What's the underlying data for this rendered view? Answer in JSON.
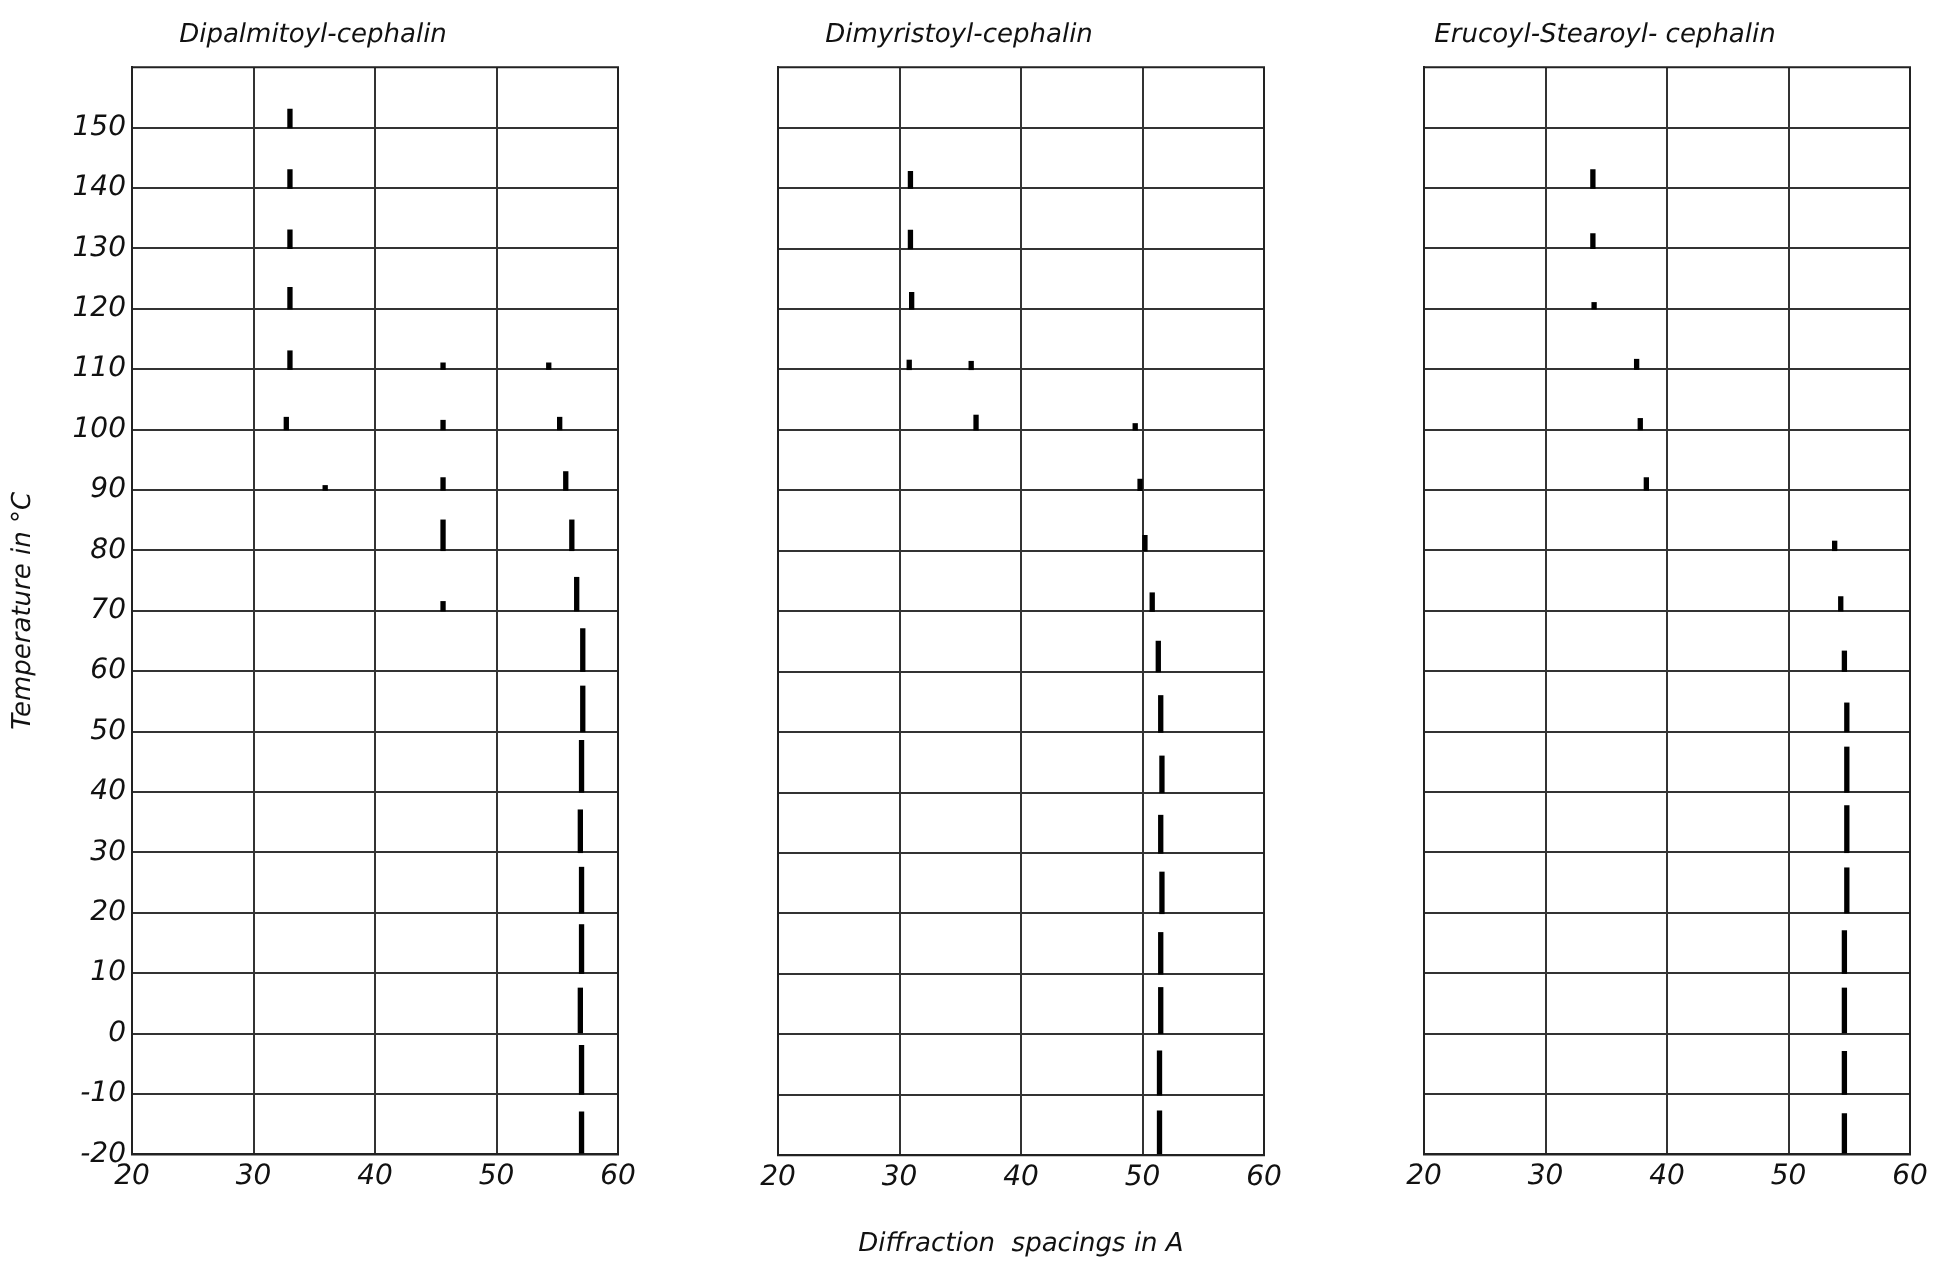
{
  "chart_data": [
    {
      "type": "bar",
      "title": "Dipalmitoyl-cephalin",
      "ylabel": "Temperature in °C",
      "xlim": [
        20,
        60
      ],
      "xticks": [
        20,
        30,
        40,
        50,
        60
      ],
      "ylim": [
        -20,
        160
      ],
      "yticks": [
        -20,
        -10,
        0,
        10,
        20,
        30,
        40,
        50,
        60,
        70,
        80,
        90,
        100,
        110,
        120,
        130,
        140,
        150
      ],
      "grid": true,
      "series": [
        {
          "color": "#000000",
          "x": [
            32.7
          ],
          "base": [
            100
          ],
          "values": [
            2
          ]
        },
        {
          "color": "#000000",
          "x": [
            33
          ],
          "base": [
            150
          ],
          "values": [
            3
          ]
        },
        {
          "color": "#000000",
          "x": [
            33
          ],
          "base": [
            140
          ],
          "values": [
            3
          ]
        },
        {
          "color": "#000000",
          "x": [
            33
          ],
          "base": [
            130
          ],
          "values": [
            3
          ]
        },
        {
          "color": "#000000",
          "x": [
            33
          ],
          "base": [
            120
          ],
          "values": [
            3.5
          ]
        },
        {
          "color": "#000000",
          "x": [
            33
          ],
          "base": [
            110
          ],
          "values": [
            3
          ]
        },
        {
          "color": "#000000",
          "x": [
            35.9
          ],
          "base": [
            90
          ],
          "values": [
            0.7
          ]
        },
        {
          "color": "#000000",
          "x": [
            45.6
          ],
          "base": [
            110
          ],
          "values": [
            1
          ]
        },
        {
          "color": "#000000",
          "x": [
            45.6
          ],
          "base": [
            100
          ],
          "values": [
            1.5
          ]
        },
        {
          "color": "#000000",
          "x": [
            45.6
          ],
          "base": [
            90
          ],
          "values": [
            2
          ]
        },
        {
          "color": "#000000",
          "x": [
            45.6
          ],
          "base": [
            80
          ],
          "values": [
            5
          ]
        },
        {
          "color": "#000000",
          "x": [
            45.6
          ],
          "base": [
            70
          ],
          "values": [
            1.5
          ]
        },
        {
          "color": "#000000",
          "x": [
            54.3
          ],
          "base": [
            110
          ],
          "values": [
            1
          ]
        },
        {
          "color": "#000000",
          "x": [
            55.2
          ],
          "base": [
            100
          ],
          "values": [
            2
          ]
        },
        {
          "color": "#000000",
          "x": [
            55.7
          ],
          "base": [
            90
          ],
          "values": [
            3
          ]
        },
        {
          "color": "#000000",
          "x": [
            56.2
          ],
          "base": [
            80
          ],
          "values": [
            5
          ]
        },
        {
          "color": "#000000",
          "x": [
            56.6
          ],
          "base": [
            70
          ],
          "values": [
            5.5
          ]
        },
        {
          "color": "#000000",
          "x": [
            56.9
          ],
          "base": [
            30
          ],
          "values": [
            7
          ]
        },
        {
          "color": "#000000",
          "x": [
            56.9
          ],
          "base": [
            0
          ],
          "values": [
            7.5
          ]
        },
        {
          "color": "#000000",
          "x": [
            57
          ],
          "base": [
            40
          ],
          "values": [
            8.5
          ]
        },
        {
          "color": "#000000",
          "x": [
            57
          ],
          "base": [
            20
          ],
          "values": [
            7.5
          ]
        },
        {
          "color": "#000000",
          "x": [
            57
          ],
          "base": [
            10
          ],
          "values": [
            8
          ]
        },
        {
          "color": "#000000",
          "x": [
            57
          ],
          "base": [
            -10
          ],
          "values": [
            8
          ]
        },
        {
          "color": "#000000",
          "x": [
            57
          ],
          "base": [
            -20
          ],
          "values": [
            7
          ]
        },
        {
          "color": "#000000",
          "x": [
            57.1
          ],
          "base": [
            60
          ],
          "values": [
            7
          ]
        },
        {
          "color": "#000000",
          "x": [
            57.1
          ],
          "base": [
            50
          ],
          "values": [
            7.5
          ]
        }
      ]
    },
    {
      "type": "bar",
      "title": "Dimyristoyl-cephalin",
      "xlabel": "Diffraction  spacings in A",
      "xlim": [
        20,
        60
      ],
      "xticks": [
        20,
        30,
        40,
        50,
        60
      ],
      "ylim": [
        -20,
        160
      ],
      "yticks": [
        -20,
        -10,
        0,
        10,
        20,
        30,
        40,
        50,
        60,
        70,
        80,
        90,
        100,
        110,
        120,
        130,
        140,
        150
      ],
      "grid": true,
      "tick_labels": "x",
      "series": [
        {
          "color": "#000000",
          "x": [
            30.8,
            35.9
          ],
          "base": [
            110,
            110
          ],
          "values": [
            1.5,
            1.3
          ]
        },
        {
          "color": "#000000",
          "x": [
            30.9
          ],
          "base": [
            140
          ],
          "values": [
            2.7
          ]
        },
        {
          "color": "#000000",
          "x": [
            30.9
          ],
          "base": [
            130
          ],
          "values": [
            3
          ]
        },
        {
          "color": "#000000",
          "x": [
            31
          ],
          "base": [
            120
          ],
          "values": [
            2.7
          ]
        },
        {
          "color": "#000000",
          "x": [
            36.3,
            49.4
          ],
          "base": [
            100,
            100
          ],
          "values": [
            2.4,
            1
          ]
        },
        {
          "color": "#000000",
          "x": [
            49.8
          ],
          "base": [
            90
          ],
          "values": [
            1.8
          ]
        },
        {
          "color": "#000000",
          "x": [
            50.2
          ],
          "base": [
            80
          ],
          "values": [
            2.5
          ]
        },
        {
          "color": "#000000",
          "x": [
            50.8
          ],
          "base": [
            70
          ],
          "values": [
            3
          ]
        },
        {
          "color": "#000000",
          "x": [
            51.3
          ],
          "base": [
            60
          ],
          "values": [
            5
          ]
        },
        {
          "color": "#000000",
          "x": [
            51.4
          ],
          "base": [
            -10
          ],
          "values": [
            7.2
          ]
        },
        {
          "color": "#000000",
          "x": [
            51.4
          ],
          "base": [
            -20
          ],
          "values": [
            7.3
          ]
        },
        {
          "color": "#000000",
          "x": [
            51.5
          ],
          "base": [
            50
          ],
          "values": [
            6
          ]
        },
        {
          "color": "#000000",
          "x": [
            51.5
          ],
          "base": [
            30
          ],
          "values": [
            6.2
          ]
        },
        {
          "color": "#000000",
          "x": [
            51.5
          ],
          "base": [
            10
          ],
          "values": [
            6.8
          ]
        },
        {
          "color": "#000000",
          "x": [
            51.5
          ],
          "base": [
            0
          ],
          "values": [
            7.7
          ]
        },
        {
          "color": "#000000",
          "x": [
            51.6
          ],
          "base": [
            40
          ],
          "values": [
            6
          ]
        },
        {
          "color": "#000000",
          "x": [
            51.6
          ],
          "base": [
            20
          ],
          "values": [
            6.8
          ]
        }
      ]
    },
    {
      "type": "bar",
      "title": "Erucoyl-Stearoyl- cephalin",
      "xlim": [
        20,
        60
      ],
      "xticks": [
        20,
        30,
        40,
        50,
        60
      ],
      "ylim": [
        -20,
        160
      ],
      "yticks": [
        -20,
        -10,
        0,
        10,
        20,
        30,
        40,
        50,
        60,
        70,
        80,
        90,
        100,
        110,
        120,
        130,
        140,
        150
      ],
      "grid": true,
      "tick_labels": "x",
      "series": [
        {
          "color": "#000000",
          "x": [
            33.9
          ],
          "base": [
            140
          ],
          "values": [
            3
          ]
        },
        {
          "color": "#000000",
          "x": [
            33.9
          ],
          "base": [
            130
          ],
          "values": [
            2.4
          ]
        },
        {
          "color": "#000000",
          "x": [
            34
          ],
          "base": [
            120
          ],
          "values": [
            1
          ]
        },
        {
          "color": "#000000",
          "x": [
            37.5
          ],
          "base": [
            110
          ],
          "values": [
            1.6
          ]
        },
        {
          "color": "#000000",
          "x": [
            37.8
          ],
          "base": [
            100
          ],
          "values": [
            1.8
          ]
        },
        {
          "color": "#000000",
          "x": [
            38.3
          ],
          "base": [
            90
          ],
          "values": [
            2
          ]
        },
        {
          "color": "#000000",
          "x": [
            53.8
          ],
          "base": [
            80
          ],
          "values": [
            1.5
          ]
        },
        {
          "color": "#000000",
          "x": [
            54.3
          ],
          "base": [
            70
          ],
          "values": [
            2.3
          ]
        },
        {
          "color": "#000000",
          "x": [
            54.6
          ],
          "base": [
            60
          ],
          "values": [
            3.3
          ]
        },
        {
          "color": "#000000",
          "x": [
            54.6
          ],
          "base": [
            10
          ],
          "values": [
            7
          ]
        },
        {
          "color": "#000000",
          "x": [
            54.6
          ],
          "base": [
            0
          ],
          "values": [
            7.5
          ]
        },
        {
          "color": "#000000",
          "x": [
            54.6
          ],
          "base": [
            -10
          ],
          "values": [
            7
          ]
        },
        {
          "color": "#000000",
          "x": [
            54.6
          ],
          "base": [
            -20
          ],
          "values": [
            6.7
          ]
        },
        {
          "color": "#000000",
          "x": [
            54.8
          ],
          "base": [
            50
          ],
          "values": [
            4.7
          ]
        },
        {
          "color": "#000000",
          "x": [
            54.8
          ],
          "base": [
            40
          ],
          "values": [
            7.4
          ]
        },
        {
          "color": "#000000",
          "x": [
            54.8
          ],
          "base": [
            30
          ],
          "values": [
            7.7
          ]
        },
        {
          "color": "#000000",
          "x": [
            54.8
          ],
          "base": [
            20
          ],
          "values": [
            7.4
          ]
        }
      ]
    }
  ]
}
